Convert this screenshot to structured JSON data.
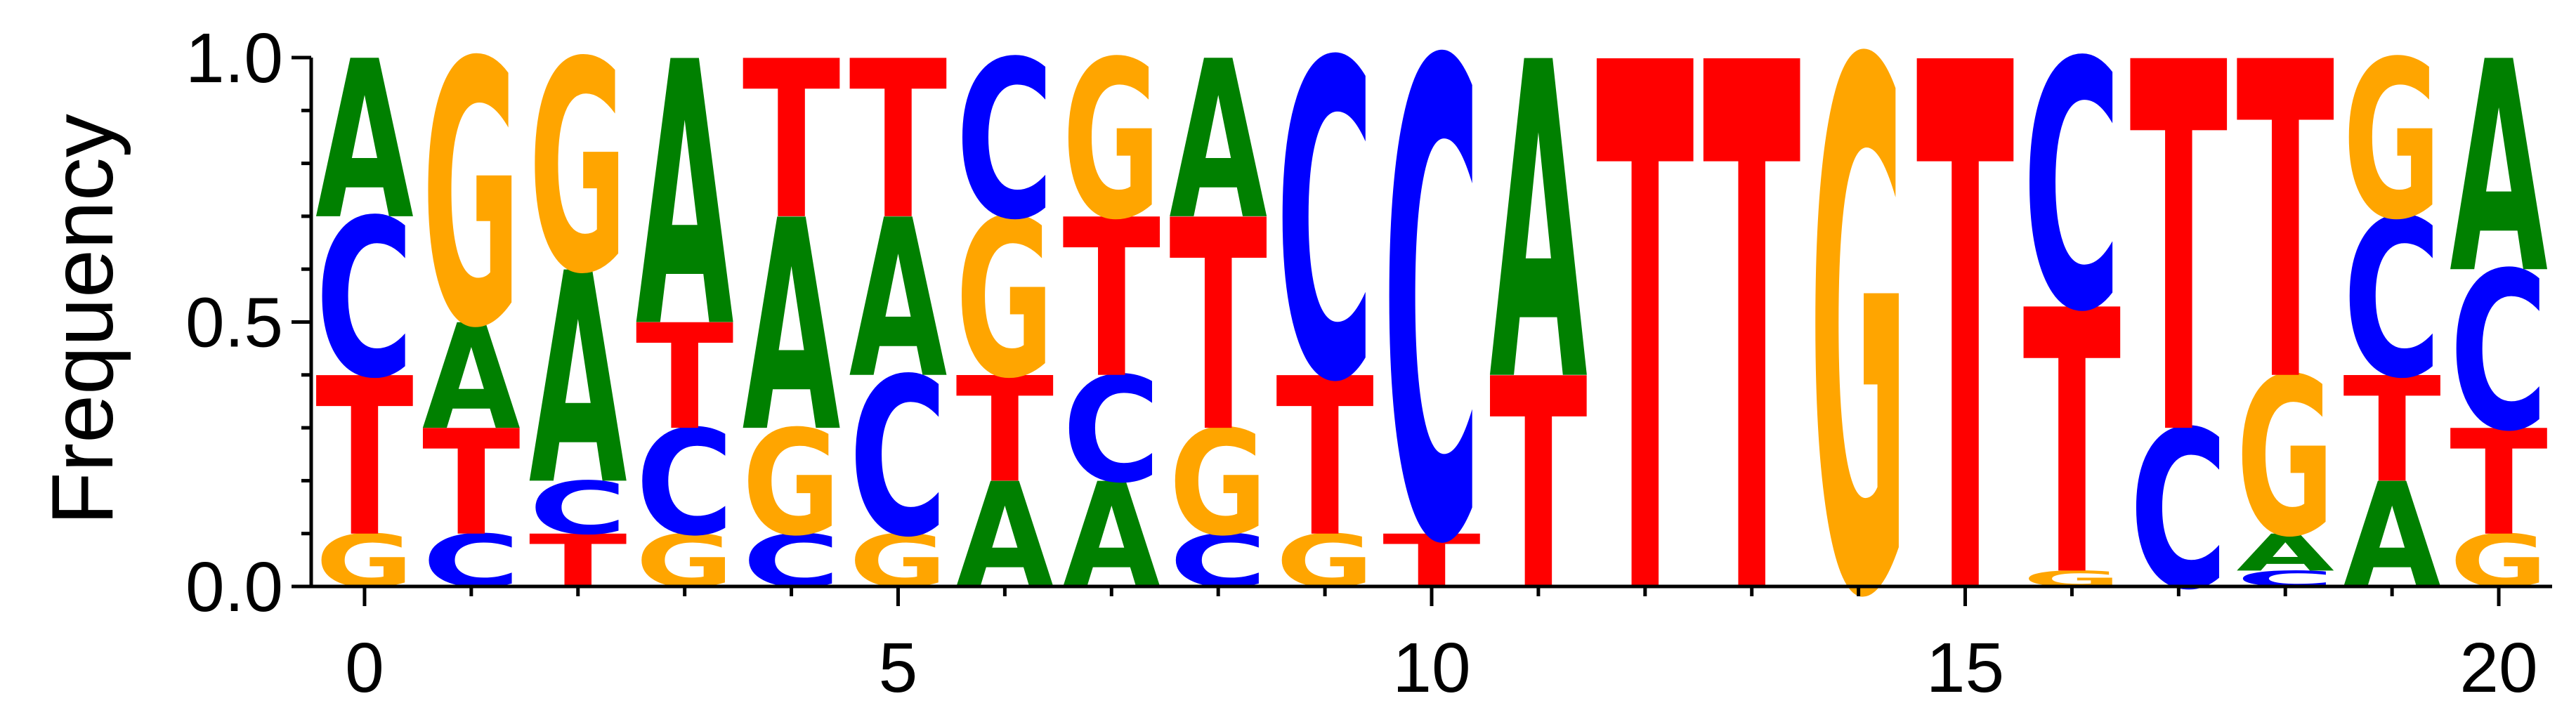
{
  "chart_data": {
    "type": "sequence_logo",
    "title": "",
    "xlabel": "",
    "ylabel": "Frequency",
    "ylim": [
      0,
      1
    ],
    "xlim": [
      -0.5,
      20.5
    ],
    "y_ticks": [
      0.0,
      0.5,
      1.0
    ],
    "y_tick_labels": [
      "0.0",
      "0.5",
      "1.0"
    ],
    "y_minor_ticks": [
      0.1,
      0.2,
      0.3,
      0.4,
      0.6,
      0.7,
      0.8,
      0.9
    ],
    "x_ticks": [
      0,
      5,
      10,
      15,
      20
    ],
    "x_tick_labels": [
      "0",
      "5",
      "10",
      "15",
      "20"
    ],
    "x_minor_ticks": [
      1,
      2,
      3,
      4,
      6,
      7,
      8,
      9,
      11,
      12,
      13,
      14,
      16,
      17,
      18,
      19
    ],
    "colors": {
      "A": "#008000",
      "C": "#0000ff",
      "G": "#ffa500",
      "T": "#ff0000"
    },
    "positions": [
      {
        "x": 0,
        "letters": [
          {
            "base": "G",
            "value": 0.1
          },
          {
            "base": "T",
            "value": 0.3
          },
          {
            "base": "C",
            "value": 0.3
          },
          {
            "base": "A",
            "value": 0.3
          }
        ]
      },
      {
        "x": 1,
        "letters": [
          {
            "base": "C",
            "value": 0.1
          },
          {
            "base": "T",
            "value": 0.2
          },
          {
            "base": "A",
            "value": 0.2
          },
          {
            "base": "G",
            "value": 0.5
          }
        ]
      },
      {
        "x": 2,
        "letters": [
          {
            "base": "T",
            "value": 0.1
          },
          {
            "base": "C",
            "value": 0.1
          },
          {
            "base": "A",
            "value": 0.4
          },
          {
            "base": "G",
            "value": 0.4
          }
        ]
      },
      {
        "x": 3,
        "letters": [
          {
            "base": "G",
            "value": 0.1
          },
          {
            "base": "C",
            "value": 0.2
          },
          {
            "base": "T",
            "value": 0.2
          },
          {
            "base": "A",
            "value": 0.5
          }
        ]
      },
      {
        "x": 4,
        "letters": [
          {
            "base": "C",
            "value": 0.1
          },
          {
            "base": "G",
            "value": 0.2
          },
          {
            "base": "A",
            "value": 0.4
          },
          {
            "base": "T",
            "value": 0.3
          }
        ]
      },
      {
        "x": 5,
        "letters": [
          {
            "base": "G",
            "value": 0.1
          },
          {
            "base": "C",
            "value": 0.3
          },
          {
            "base": "A",
            "value": 0.3
          },
          {
            "base": "T",
            "value": 0.3
          }
        ]
      },
      {
        "x": 6,
        "letters": [
          {
            "base": "A",
            "value": 0.2
          },
          {
            "base": "T",
            "value": 0.2
          },
          {
            "base": "G",
            "value": 0.3
          },
          {
            "base": "C",
            "value": 0.3
          }
        ]
      },
      {
        "x": 7,
        "letters": [
          {
            "base": "A",
            "value": 0.2
          },
          {
            "base": "C",
            "value": 0.2
          },
          {
            "base": "T",
            "value": 0.3
          },
          {
            "base": "G",
            "value": 0.3
          }
        ]
      },
      {
        "x": 8,
        "letters": [
          {
            "base": "C",
            "value": 0.1
          },
          {
            "base": "G",
            "value": 0.2
          },
          {
            "base": "T",
            "value": 0.4
          },
          {
            "base": "A",
            "value": 0.3
          }
        ]
      },
      {
        "x": 9,
        "letters": [
          {
            "base": "G",
            "value": 0.1
          },
          {
            "base": "T",
            "value": 0.3
          },
          {
            "base": "C",
            "value": 0.6
          }
        ]
      },
      {
        "x": 10,
        "letters": [
          {
            "base": "T",
            "value": 0.1
          },
          {
            "base": "C",
            "value": 0.9
          }
        ]
      },
      {
        "x": 11,
        "letters": [
          {
            "base": "T",
            "value": 0.4
          },
          {
            "base": "A",
            "value": 0.6
          }
        ]
      },
      {
        "x": 12,
        "letters": [
          {
            "base": "T",
            "value": 1.0
          }
        ]
      },
      {
        "x": 13,
        "letters": [
          {
            "base": "T",
            "value": 1.0
          }
        ]
      },
      {
        "x": 14,
        "letters": [
          {
            "base": "G",
            "value": 1.0
          }
        ]
      },
      {
        "x": 15,
        "letters": [
          {
            "base": "T",
            "value": 1.0
          }
        ]
      },
      {
        "x": 16,
        "letters": [
          {
            "base": "G",
            "value": 0.03
          },
          {
            "base": "T",
            "value": 0.5
          },
          {
            "base": "C",
            "value": 0.47
          }
        ]
      },
      {
        "x": 17,
        "letters": [
          {
            "base": "C",
            "value": 0.3
          },
          {
            "base": "T",
            "value": 0.7
          }
        ]
      },
      {
        "x": 18,
        "letters": [
          {
            "base": "C",
            "value": 0.03
          },
          {
            "base": "A",
            "value": 0.07
          },
          {
            "base": "G",
            "value": 0.3
          },
          {
            "base": "T",
            "value": 0.6
          }
        ]
      },
      {
        "x": 19,
        "letters": [
          {
            "base": "A",
            "value": 0.2
          },
          {
            "base": "T",
            "value": 0.2
          },
          {
            "base": "C",
            "value": 0.3
          },
          {
            "base": "G",
            "value": 0.3
          }
        ]
      },
      {
        "x": 20,
        "letters": [
          {
            "base": "G",
            "value": 0.1
          },
          {
            "base": "T",
            "value": 0.2
          },
          {
            "base": "C",
            "value": 0.3
          },
          {
            "base": "A",
            "value": 0.4
          }
        ]
      }
    ]
  }
}
